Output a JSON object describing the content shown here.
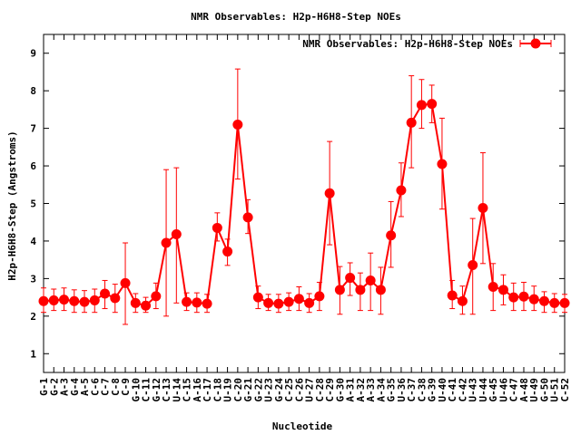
{
  "chart_data": {
    "type": "line",
    "title": "NMR Observables: H2p-H6H8-Step NOEs",
    "xlabel": "Nucleotide",
    "ylabel": "H2p-H6H8-Step (Angstroms)",
    "ylim": [
      0.5,
      9.5
    ],
    "yticks": [
      1,
      2,
      3,
      4,
      5,
      6,
      7,
      8,
      9
    ],
    "grid": false,
    "legend_position": "top-right",
    "series": [
      {
        "name": "NMR Observables: H2p-H6H8-Step NOEs",
        "color": "#ff0000",
        "values": [
          2.4,
          2.42,
          2.44,
          2.4,
          2.38,
          2.42,
          2.6,
          2.48,
          2.88,
          2.35,
          2.28,
          2.53,
          3.95,
          4.18,
          2.38,
          2.36,
          2.33,
          4.35,
          3.72,
          7.1,
          4.63,
          2.5,
          2.35,
          2.33,
          2.38,
          2.46,
          2.35,
          2.53,
          5.27,
          2.7,
          3.02,
          2.7,
          2.95,
          2.7,
          4.15,
          5.35,
          7.15,
          7.62,
          7.65,
          6.05,
          2.55,
          2.4,
          3.36,
          4.88,
          2.78,
          2.7,
          2.5,
          2.52,
          2.45,
          2.4,
          2.35,
          2.35
        ],
        "error_low": [
          2.1,
          2.15,
          2.15,
          2.1,
          2.1,
          2.1,
          2.2,
          2.1,
          1.78,
          2.1,
          2.1,
          2.2,
          2.0,
          2.35,
          2.15,
          2.1,
          2.1,
          4.0,
          3.35,
          5.65,
          4.2,
          2.2,
          2.15,
          2.1,
          2.15,
          2.15,
          2.1,
          2.15,
          3.9,
          2.05,
          2.55,
          2.15,
          2.15,
          2.05,
          3.3,
          4.65,
          5.95,
          7.0,
          7.15,
          4.85,
          2.2,
          2.05,
          2.05,
          3.4,
          2.15,
          2.3,
          2.15,
          2.15,
          2.15,
          2.1,
          2.1,
          2.1
        ],
        "error_high": [
          2.75,
          2.72,
          2.75,
          2.7,
          2.68,
          2.72,
          2.95,
          2.85,
          3.95,
          2.6,
          2.5,
          2.88,
          5.9,
          5.95,
          2.62,
          2.62,
          2.58,
          4.75,
          4.05,
          8.58,
          5.1,
          2.8,
          2.58,
          2.58,
          2.62,
          2.78,
          2.6,
          2.9,
          6.65,
          3.32,
          3.42,
          3.15,
          3.68,
          3.3,
          5.05,
          6.08,
          8.4,
          8.3,
          8.15,
          7.27,
          2.95,
          2.8,
          4.6,
          6.35,
          3.4,
          3.1,
          2.88,
          2.9,
          2.8,
          2.65,
          2.6,
          2.58
        ]
      }
    ],
    "categories": [
      "G-1",
      "G-2",
      "A-3",
      "G-4",
      "A-5",
      "C-6",
      "C-7",
      "C-8",
      "C-9",
      "G-10",
      "C-11",
      "G-12",
      "C-13",
      "U-14",
      "C-15",
      "A-16",
      "C-17",
      "C-18",
      "U-19",
      "C-20",
      "G-21",
      "G-22",
      "U-23",
      "G-24",
      "C-25",
      "C-26",
      "U-27",
      "C-28",
      "C-29",
      "G-30",
      "A-31",
      "A-32",
      "A-33",
      "A-34",
      "G-35",
      "U-36",
      "C-37",
      "C-38",
      "G-39",
      "U-40",
      "C-41",
      "C-42",
      "U-43",
      "U-44",
      "G-45",
      "U-46",
      "C-47",
      "A-48",
      "U-49",
      "G-50",
      "U-51",
      "C-52"
    ]
  }
}
